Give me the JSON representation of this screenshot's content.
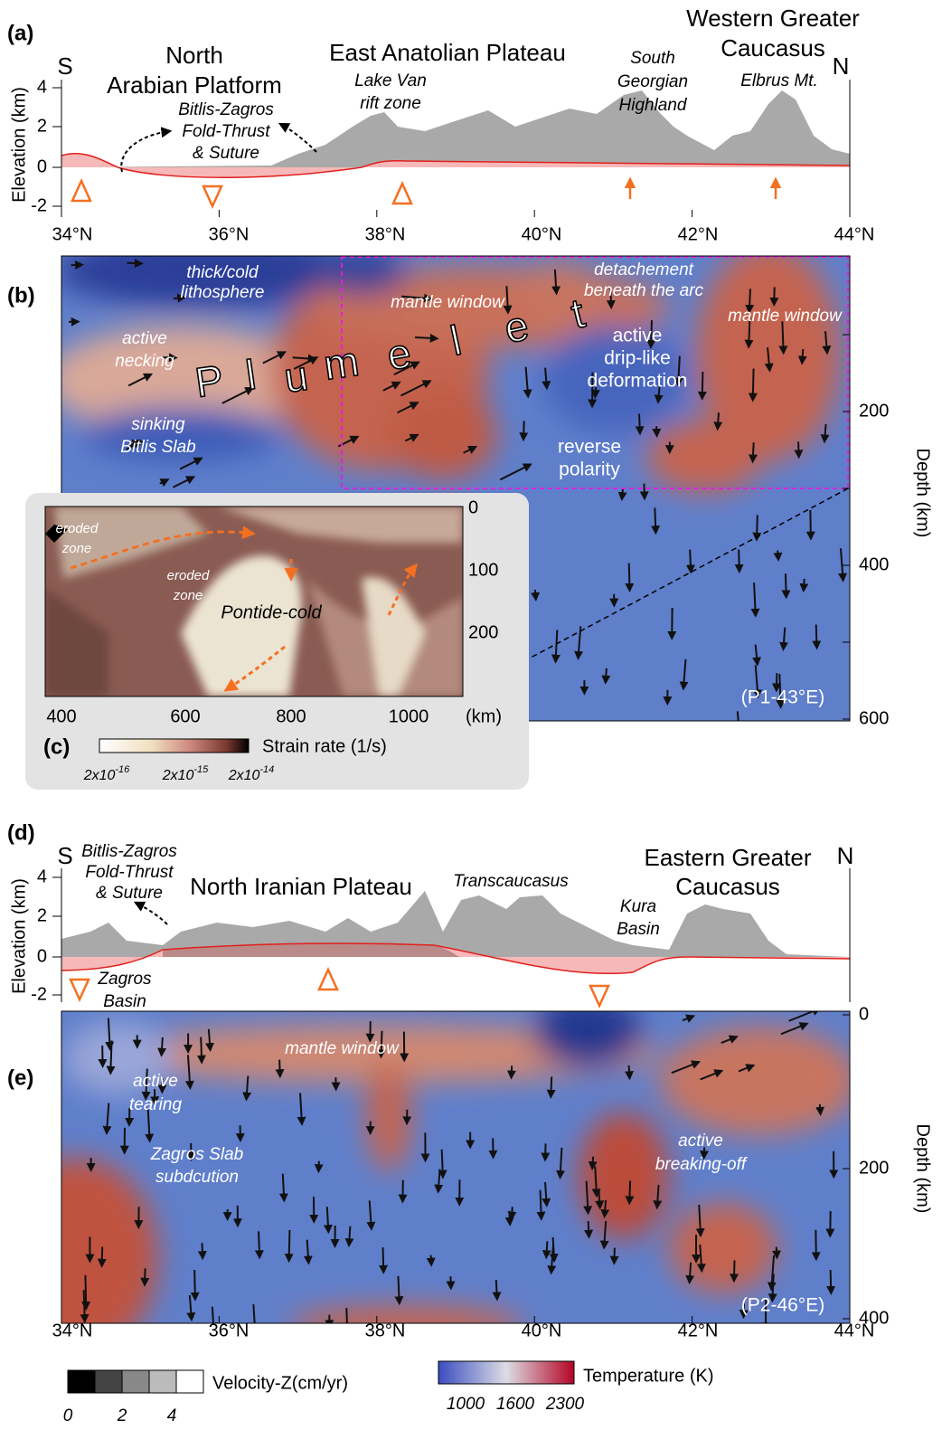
{
  "panel_a": {
    "label": "(a)",
    "south": "S",
    "north": "N",
    "axis_title": "Elevation (km)",
    "yticks": [
      "4",
      "2",
      "0",
      "-2"
    ],
    "regions": [
      [
        "North",
        "Arabian Platform"
      ],
      [
        "East Anatolian Plateau"
      ],
      [
        "Western Greater",
        "Caucasus"
      ]
    ],
    "notes": [
      [
        "Bitlis-Zagros",
        "Fold-Thrust",
        "& Suture"
      ],
      [
        "Lake Van",
        "rift zone"
      ],
      [
        "South",
        "Georgian",
        "Highland"
      ],
      [
        "Elbrus Mt."
      ]
    ]
  },
  "latitude_ticks": [
    "34°N",
    "36°N",
    "38°N",
    "40°N",
    "42°N",
    "44°N"
  ],
  "panel_b": {
    "label": "(b)",
    "notes": [
      [
        "thick/cold",
        "lithosphere"
      ],
      [
        "mantle window"
      ],
      [
        "detachement",
        "beneath the arc"
      ],
      [
        "mantle window"
      ],
      [
        "active",
        "necking"
      ],
      [
        "sinking",
        "Bitlis Slab"
      ],
      [
        "active",
        "drip-like",
        "deformation"
      ],
      [
        "reverse",
        "polarity"
      ]
    ],
    "plumelet": [
      "P",
      "l",
      "u",
      "m",
      "e",
      "l",
      "e",
      "t"
    ],
    "profile": "(P1-43°E)",
    "axis_title": "Depth (km)",
    "depth_ticks": [
      "200",
      "400",
      "600"
    ]
  },
  "panel_c": {
    "label": "(c)",
    "notes": [
      [
        "eroded",
        "zone"
      ],
      [
        "eroded",
        "zone"
      ],
      [
        "Pontide-cold"
      ]
    ],
    "yticks": [
      "0",
      "100",
      "200"
    ],
    "xticks": [
      "400",
      "600",
      "800",
      "1000",
      "(km)"
    ],
    "colorbar_title": "Strain rate (1/s)",
    "colorbar_ticks": [
      {
        "base": "2x10",
        "exponent": "-16"
      },
      {
        "base": "2x10",
        "exponent": "-15"
      },
      {
        "base": "2x10",
        "exponent": "-14"
      }
    ]
  },
  "panel_d": {
    "label": "(d)",
    "south": "S",
    "north": "N",
    "axis_title": "Elevation (km)",
    "yticks": [
      "4",
      "2",
      "0",
      "-2"
    ],
    "regions": [
      [
        "North Iranian Plateau"
      ],
      [
        "Eastern Greater",
        "Caucasus"
      ]
    ],
    "notes": [
      [
        "Bitlis-Zagros",
        "Fold-Thrust",
        "& Suture"
      ],
      [
        "Transcaucasus"
      ],
      [
        "Kura",
        "Basin"
      ],
      [
        "Zagros",
        "Basin"
      ]
    ]
  },
  "panel_e": {
    "label": "(e)",
    "notes": [
      [
        "mantle window"
      ],
      [
        "active",
        "tearing"
      ],
      [
        "Zagros Slab",
        "subdcution"
      ],
      [
        "active",
        "breaking-off"
      ]
    ],
    "profile": "(P2-46°E)",
    "axis_title": "Depth (km)",
    "depth_ticks": [
      "0",
      "200",
      "400"
    ]
  },
  "legend": {
    "velocity": {
      "title": "Velocity-Z(cm/yr)",
      "ticks": [
        "0",
        "2",
        "4"
      ]
    },
    "temperature": {
      "title": "Temperature (K)",
      "ticks": [
        "1000",
        "1600",
        "2300"
      ]
    }
  }
}
